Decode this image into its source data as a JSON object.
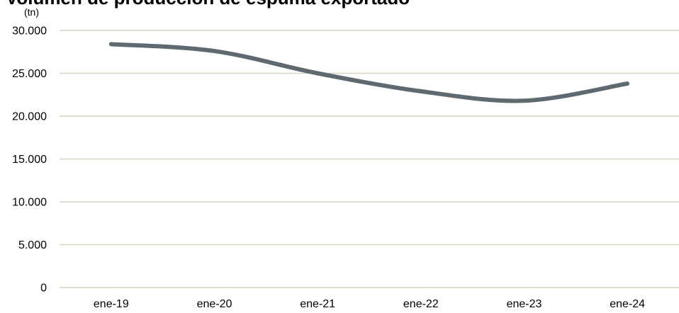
{
  "chart_data": {
    "type": "line",
    "title": "Volumen de producción de espuma exportado",
    "unit_label": "(tn)",
    "xlabel": "",
    "ylabel": "",
    "categories": [
      "ene-19",
      "ene-20",
      "ene-21",
      "ene-22",
      "ene-23",
      "ene-24"
    ],
    "series": [
      {
        "values": [
          28400,
          27600,
          25000,
          22900,
          21800,
          23800
        ]
      }
    ],
    "ylim": [
      0,
      30000
    ],
    "yticks": [
      0,
      5000,
      10000,
      15000,
      20000,
      25000,
      30000
    ],
    "ytick_labels": [
      "0",
      "5.000",
      "10.000",
      "15.000",
      "20.000",
      "25.000",
      "30.000"
    ],
    "grid": true,
    "legend": "none",
    "colors": {
      "line": "#5f6a70",
      "grid": "#d6d2c4",
      "background": "#ffffff"
    }
  }
}
